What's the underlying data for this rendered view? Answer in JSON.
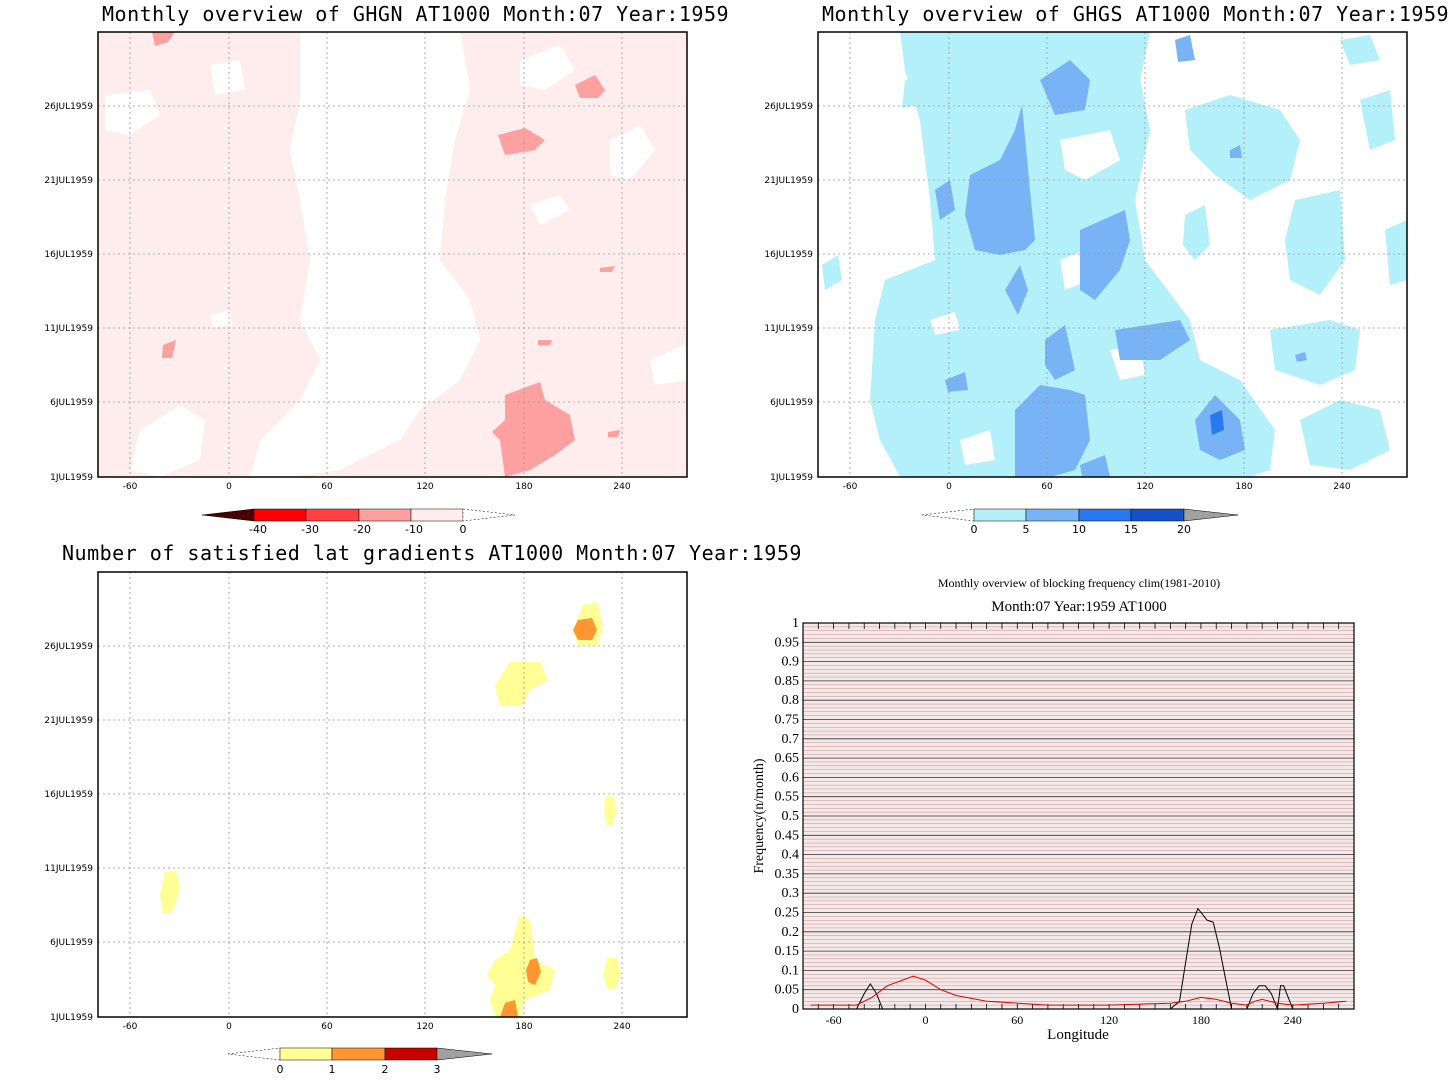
{
  "panels": {
    "ghgn": {
      "title": "Monthly overview of GHGN AT1000 Month:07 Year:1959",
      "xticks": [
        "-60",
        "0",
        "60",
        "120",
        "180",
        "240"
      ],
      "yticks": [
        "26JUL1959",
        "21JUL1959",
        "16JUL1959",
        "11JUL1959",
        "6JUL1959",
        "1JUL1959"
      ],
      "colorbar": {
        "labels": [
          "-40",
          "-30",
          "-20",
          "-10",
          "0"
        ],
        "colors": [
          "#4a0000",
          "#ff0000",
          "#ff4040",
          "#ffa0a0",
          "#ffecec"
        ]
      }
    },
    "ghgs": {
      "title": "Monthly overview of GHGS AT1000 Month:07 Year:1959",
      "xticks": [
        "-60",
        "0",
        "60",
        "120",
        "180",
        "240"
      ],
      "yticks": [
        "26JUL1959",
        "21JUL1959",
        "16JUL1959",
        "11JUL1959",
        "6JUL1959",
        "1JUL1959"
      ],
      "colorbar": {
        "labels": [
          "0",
          "5",
          "10",
          "15",
          "20"
        ],
        "colors": [
          "#b4f0fa",
          "#78b4f5",
          "#2878f0",
          "#1450c8",
          "#a0a0a0"
        ]
      }
    },
    "lat": {
      "title": "Number of satisfied lat gradients AT1000 Month:07 Year:1959",
      "xticks": [
        "-60",
        "0",
        "60",
        "120",
        "180",
        "240"
      ],
      "yticks": [
        "26JUL1959",
        "21JUL1959",
        "16JUL1959",
        "11JUL1959",
        "6JUL1959",
        "1JUL1959"
      ],
      "colorbar": {
        "labels": [
          "0",
          "1",
          "2",
          "3"
        ],
        "colors": [
          "#ffff96",
          "#ff9632",
          "#c80000",
          "#a0a0a0"
        ]
      }
    }
  },
  "chart_data": {
    "type": "line",
    "title": "Monthly overview of blocking frequency clim(1981-2010)",
    "subtitle": "Month:07 Year:1959  AT1000",
    "xlabel": "Longitude",
    "ylabel": "Frequency(n/month)",
    "xlim": [
      -80,
      280
    ],
    "ylim": [
      0,
      1
    ],
    "xticks": [
      "-60",
      "0",
      "60",
      "120",
      "180",
      "240"
    ],
    "yticks": [
      "1",
      "0.95",
      "0.9",
      "0.85",
      "0.8",
      "0.75",
      "0.7",
      "0.65",
      "0.6",
      "0.55",
      "0.5",
      "0.45",
      "0.4",
      "0.35",
      "0.3",
      "0.25",
      "0.2",
      "0.15",
      "0.1",
      "0.05",
      "0"
    ],
    "series": [
      {
        "color": "#000000",
        "x": [
          -75,
          -45,
          -40,
          -36,
          -32,
          -28,
          -20,
          150,
          160,
          166,
          170,
          174,
          178,
          184,
          188,
          192,
          196,
          200,
          210,
          214,
          218,
          222,
          226,
          230,
          232,
          234,
          236,
          240,
          244,
          280
        ],
        "y": [
          0,
          0,
          0.04,
          0.065,
          0.04,
          0,
          0,
          0,
          0,
          0.02,
          0.12,
          0.22,
          0.26,
          0.23,
          0.225,
          0.16,
          0.08,
          0,
          0,
          0.04,
          0.06,
          0.06,
          0.04,
          0,
          0.06,
          0.06,
          0.04,
          0,
          0,
          0
        ]
      },
      {
        "color": "#e00000",
        "x": [
          -75,
          -60,
          -45,
          -35,
          -25,
          -15,
          -8,
          0,
          10,
          20,
          40,
          60,
          80,
          120,
          160,
          170,
          180,
          190,
          200,
          210,
          215,
          220,
          230,
          240,
          260,
          275
        ],
        "y": [
          0.01,
          0.01,
          0.01,
          0.03,
          0.06,
          0.075,
          0.085,
          0.075,
          0.05,
          0.035,
          0.02,
          0.015,
          0.01,
          0.01,
          0.015,
          0.02,
          0.03,
          0.025,
          0.015,
          0.01,
          0.02,
          0.025,
          0.015,
          0.01,
          0.015,
          0.02
        ]
      }
    ]
  }
}
